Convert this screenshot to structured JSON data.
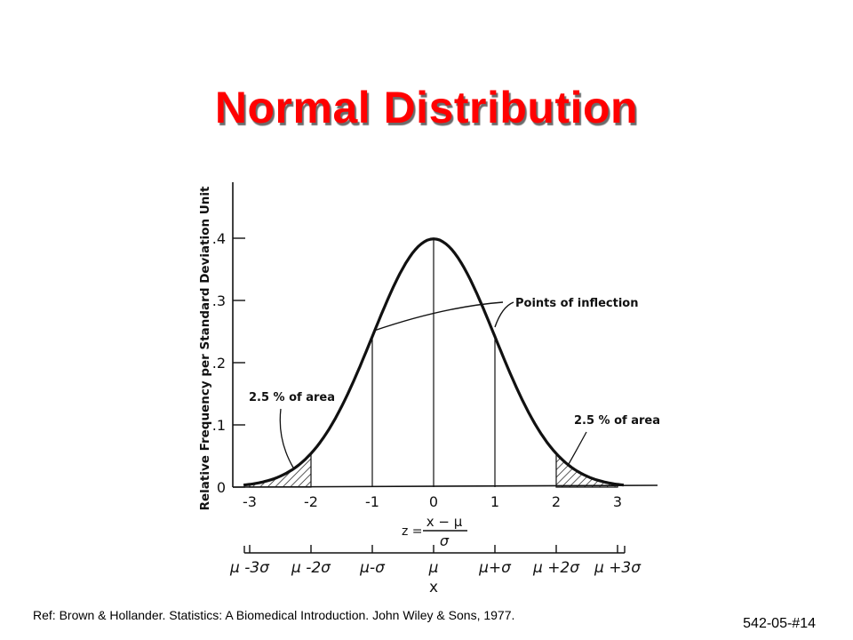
{
  "slide": {
    "title": "Normal Distribution",
    "reference": "Ref: Brown & Hollander. Statistics: A Biomedical Introduction. John Wiley & Sons, 1977.",
    "slide_number": "542-05-#14"
  },
  "chart_data": {
    "type": "line",
    "title": "",
    "ylabel": "Relative Frequency per Standard Deviation Unit",
    "xlabel": "",
    "xlim": [
      -3,
      3.6
    ],
    "ylim": [
      0,
      0.4
    ],
    "y_ticks": [
      {
        "value": 0,
        "label": "0"
      },
      {
        "value": 0.1,
        "label": ".1"
      },
      {
        "value": 0.2,
        "label": ".2"
      },
      {
        "value": 0.3,
        "label": ".3"
      },
      {
        "value": 0.4,
        "label": ".4"
      }
    ],
    "z_ticks": [
      {
        "value": -3,
        "label": "-3"
      },
      {
        "value": -2,
        "label": "-2"
      },
      {
        "value": -1,
        "label": "-1"
      },
      {
        "value": 0,
        "label": "0"
      },
      {
        "value": 1,
        "label": "1"
      },
      {
        "value": 2,
        "label": "2"
      },
      {
        "value": 3,
        "label": "3"
      }
    ],
    "x_ticks": [
      {
        "value": -3,
        "label": "μ -3σ"
      },
      {
        "value": -2,
        "label": "μ -2σ"
      },
      {
        "value": -1,
        "label": "μ-σ"
      },
      {
        "value": 0,
        "label": "μ"
      },
      {
        "value": 1,
        "label": "μ+σ"
      },
      {
        "value": 2,
        "label": "μ +2σ"
      },
      {
        "value": 3,
        "label": "μ +3σ"
      }
    ],
    "x_axis_symbol": "x",
    "z_formula": {
      "lhs": "z =",
      "numerator": "x − μ",
      "denominator": "σ"
    },
    "series": [
      {
        "x": [
          -3,
          -2.75,
          -2.5,
          -2.25,
          -2,
          -1.75,
          -1.5,
          -1.25,
          -1,
          -0.75,
          -0.5,
          -0.25,
          0,
          0.25,
          0.5,
          0.75,
          1,
          1.25,
          1.5,
          1.75,
          2,
          2.25,
          2.5,
          2.75,
          3
        ],
        "y": [
          0.0044,
          0.0091,
          0.0175,
          0.0317,
          0.054,
          0.0863,
          0.1295,
          0.1826,
          0.242,
          0.3011,
          0.3521,
          0.3867,
          0.3989,
          0.3867,
          0.3521,
          0.3011,
          0.242,
          0.1826,
          0.1295,
          0.0863,
          0.054,
          0.0317,
          0.0175,
          0.0091,
          0.0044
        ]
      }
    ],
    "reference_lines_z": [
      -1,
      0,
      1
    ],
    "shaded_tails": [
      {
        "from": -3,
        "to": -2
      },
      {
        "from": 2,
        "to": 3
      }
    ],
    "annotations": [
      {
        "id": "inflection",
        "text": "Points of inflection"
      },
      {
        "id": "left-tail",
        "text": "2.5 % of area"
      },
      {
        "id": "right-tail",
        "text": "2.5 % of area"
      }
    ],
    "colors": {
      "curve": "#111111",
      "title": "#ff0000"
    }
  }
}
